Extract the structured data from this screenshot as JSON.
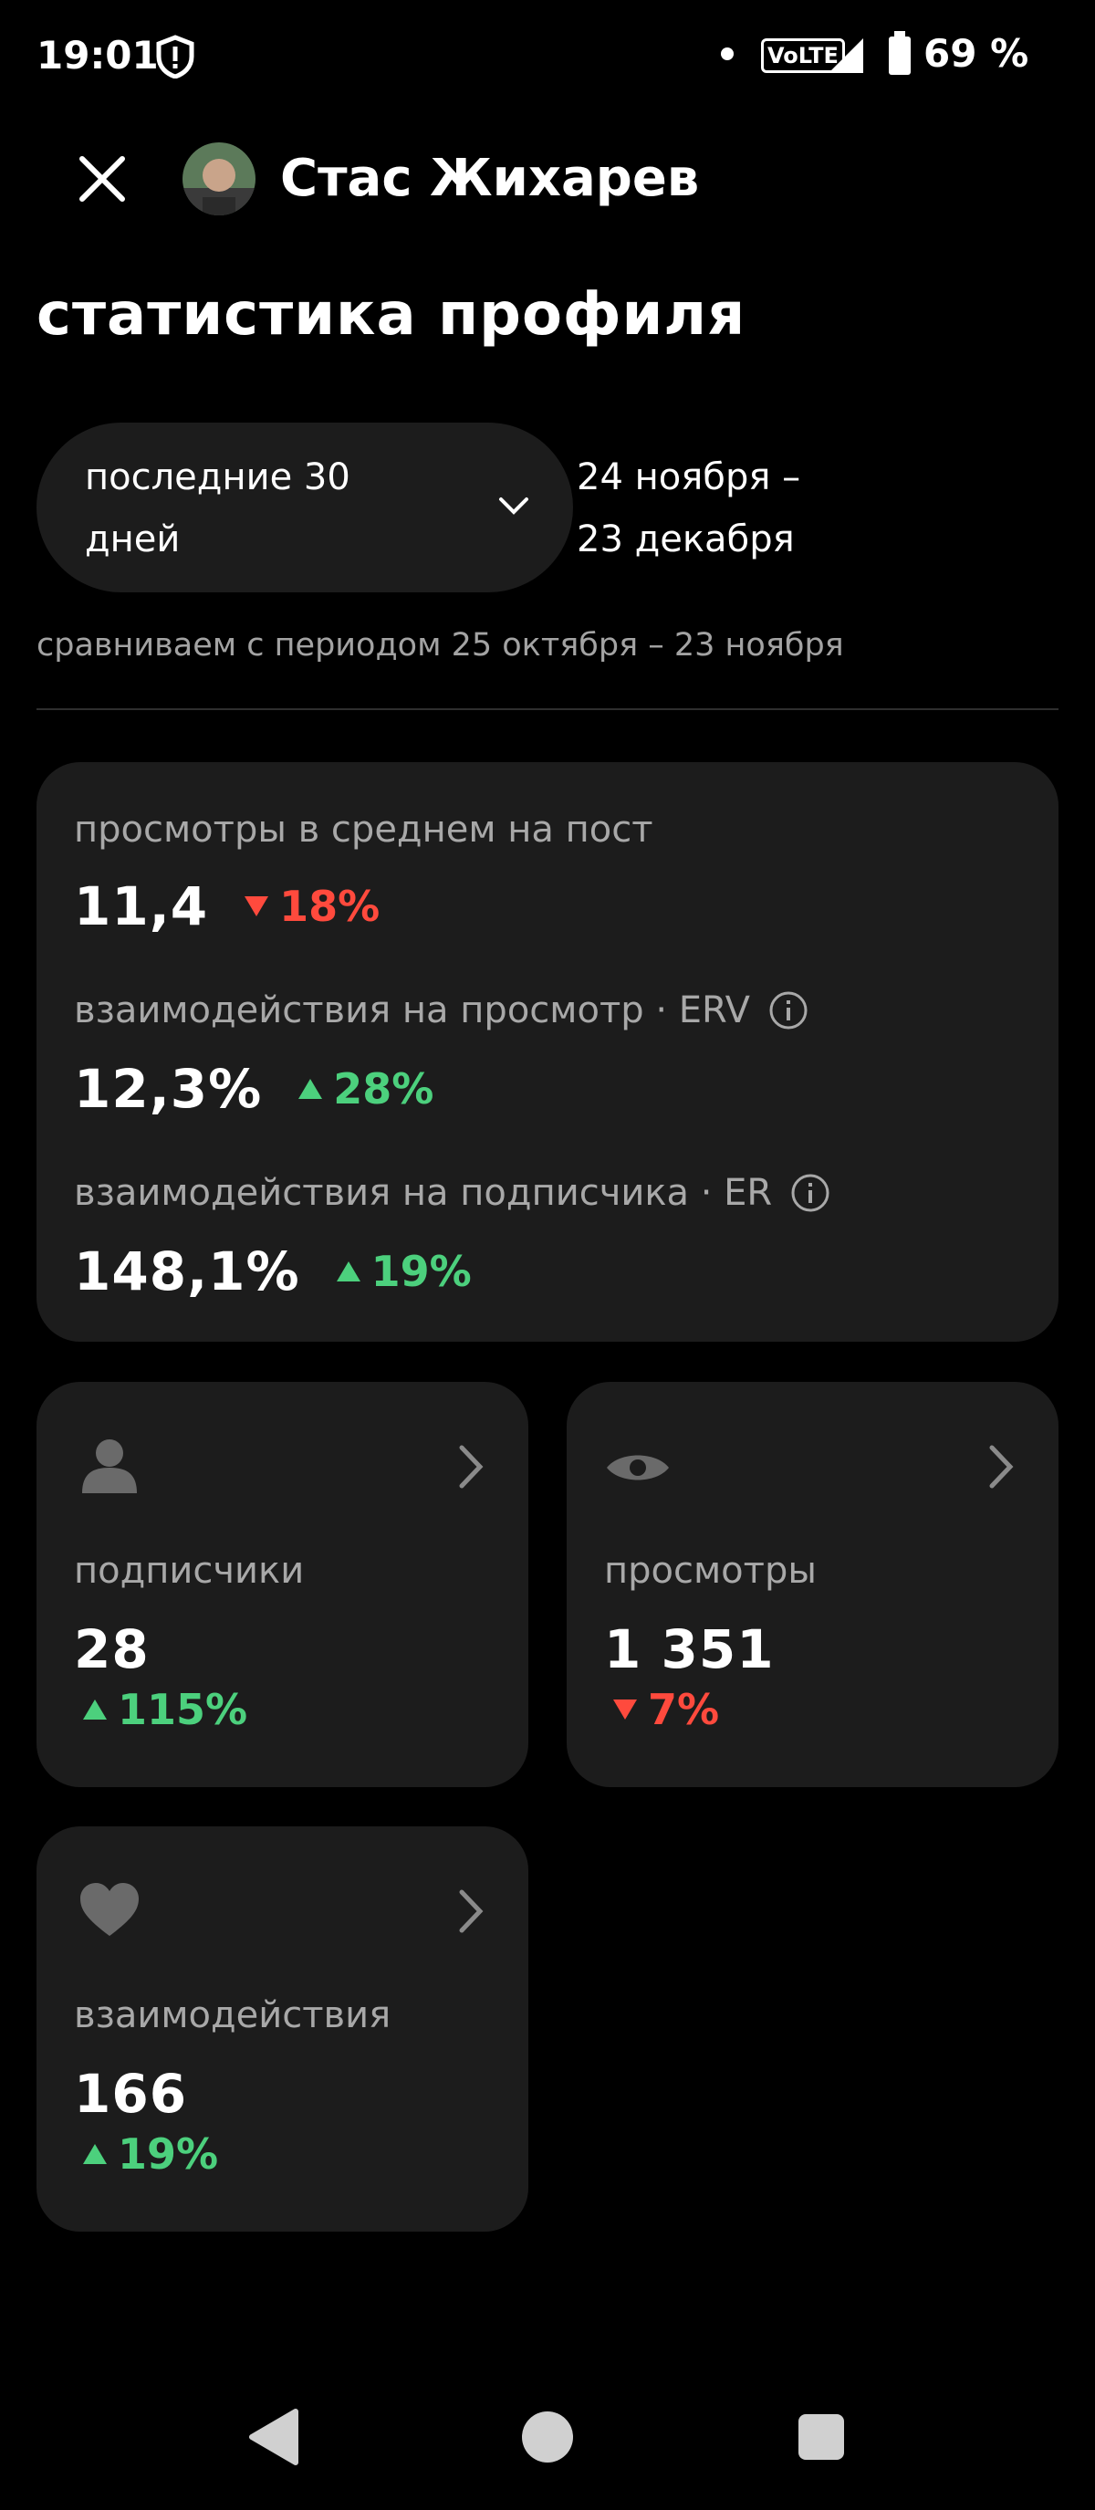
{
  "status": {
    "time": "19:01",
    "network": "VoLTE",
    "battery": "69 %"
  },
  "header": {
    "name": "Стас Жихарев"
  },
  "title": "статистика профиля",
  "period": {
    "selector": "последние 30 дней",
    "range": "24 ноября – 23 декабря",
    "compare": "сравниваем с периодом 25 октября – 23 ноября"
  },
  "summary": [
    {
      "label": "просмотры в среднем на пост",
      "value": "11,4",
      "change": "18%",
      "trend": "down"
    },
    {
      "label": "взаимодействия на просмотр · ERV",
      "value": "12,3%",
      "change": "28%",
      "trend": "up"
    },
    {
      "label": "взаимодействия на подписчика · ER",
      "value": "148,1%",
      "change": "19%",
      "trend": "up"
    }
  ],
  "tiles": [
    {
      "label": "подписчики",
      "value": "28",
      "change": "115%",
      "trend": "up"
    },
    {
      "label": "просмотры",
      "value": "1 351",
      "change": "7%",
      "trend": "down"
    },
    {
      "label": "взаимодействия",
      "value": "166",
      "change": "19%",
      "trend": "up"
    }
  ]
}
